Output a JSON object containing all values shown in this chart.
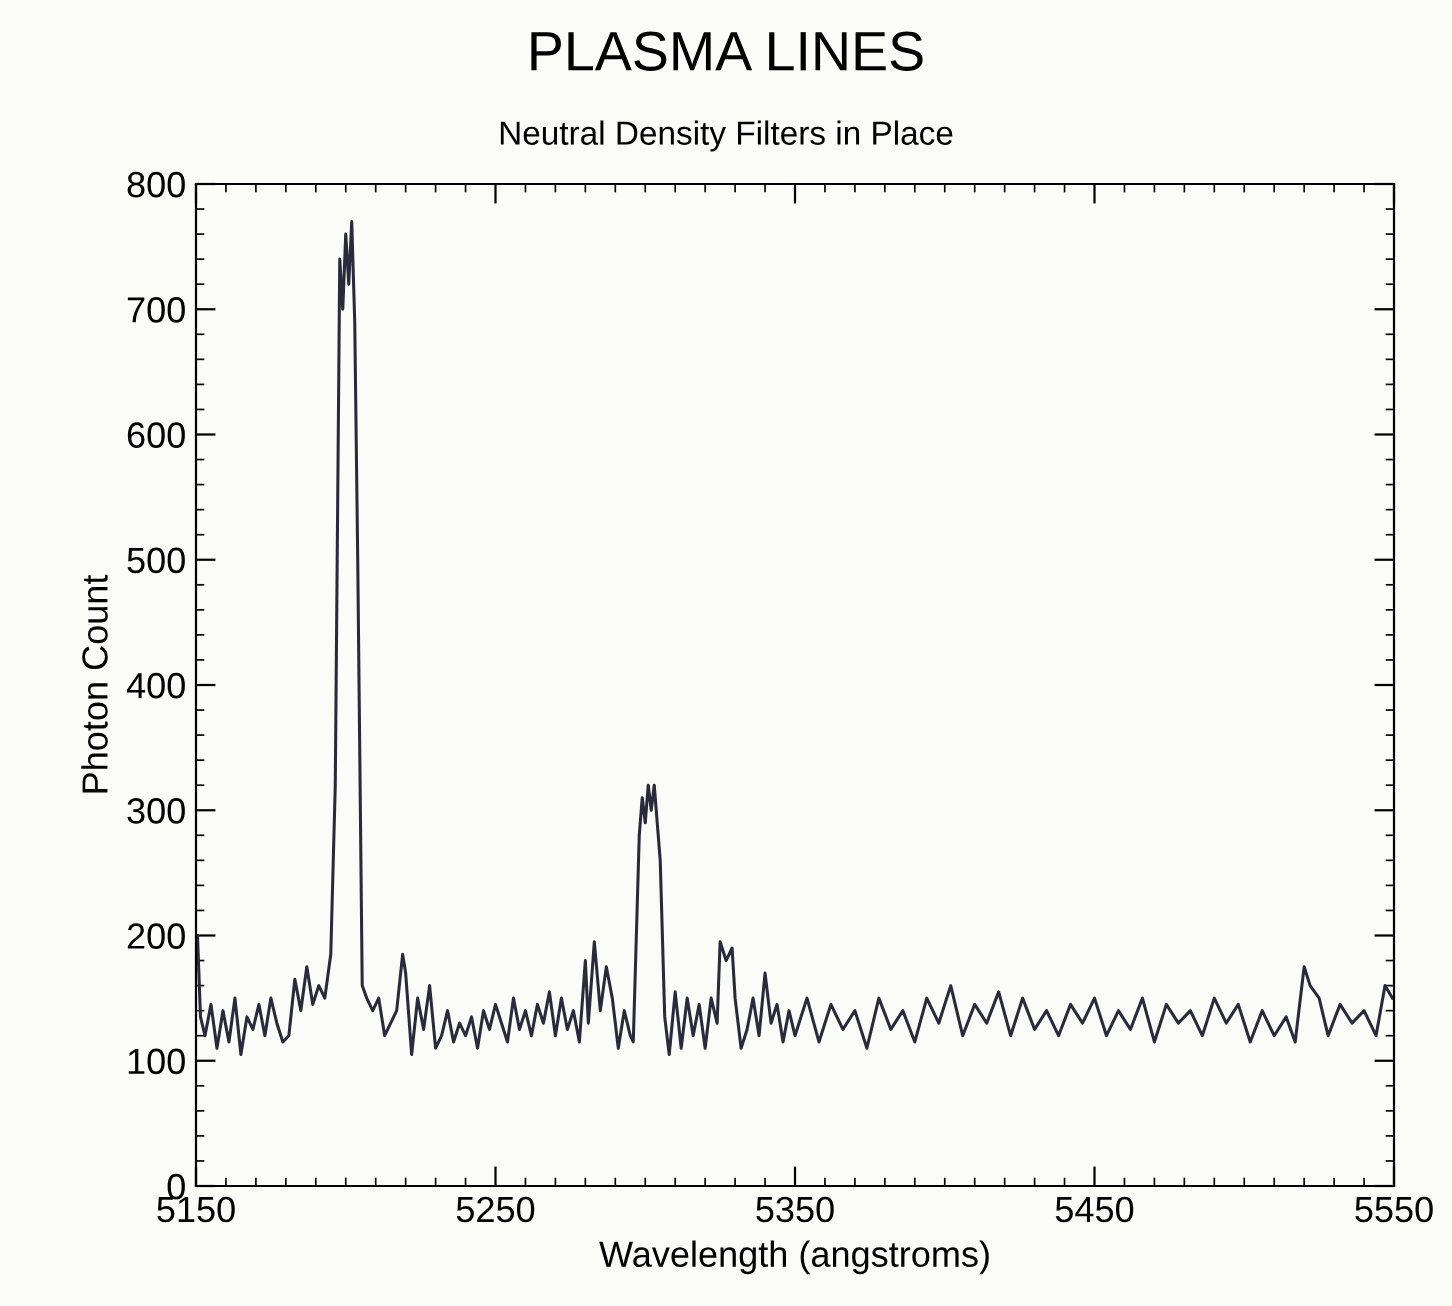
{
  "chart_data": {
    "type": "line",
    "title": "PLASMA LINES",
    "subtitle": "Neutral Density Filters in Place",
    "xlabel": "Wavelength (angstroms)",
    "ylabel": "Photon Count",
    "series": [
      {
        "color": "#2a2a3c",
        "x": [
          5150.5,
          5151.5,
          5153,
          5155,
          5157,
          5159,
          5161,
          5163,
          5165,
          5167,
          5169,
          5171,
          5173,
          5175,
          5177,
          5179,
          5181,
          5183,
          5185,
          5187,
          5189,
          5191,
          5193,
          5195,
          5196.5,
          5198,
          5199,
          5200,
          5201,
          5202,
          5203,
          5204,
          5205.5,
          5207,
          5209,
          5211,
          5213,
          5215,
          5217,
          5219,
          5220,
          5222,
          5224,
          5226,
          5228,
          5230,
          5232,
          5234,
          5236,
          5238,
          5240,
          5242,
          5244,
          5246,
          5248,
          5250,
          5252,
          5254,
          5256,
          5258,
          5260,
          5262,
          5264,
          5266,
          5268,
          5270,
          5272,
          5274,
          5276,
          5278,
          5280,
          5281,
          5283,
          5285,
          5287,
          5289,
          5291,
          5293,
          5295,
          5296,
          5298,
          5299,
          5300,
          5301,
          5302,
          5303,
          5305,
          5306.5,
          5308,
          5310,
          5312,
          5314,
          5316,
          5318,
          5320,
          5322,
          5324,
          5325,
          5327,
          5329,
          5330,
          5332,
          5334,
          5336,
          5338,
          5340,
          5342,
          5344,
          5346,
          5348,
          5350,
          5354,
          5358,
          5362,
          5366,
          5370,
          5374,
          5378,
          5382,
          5386,
          5390,
          5394,
          5398,
          5402,
          5406,
          5410,
          5414,
          5418,
          5422,
          5426,
          5430,
          5434,
          5438,
          5442,
          5446,
          5450,
          5454,
          5458,
          5462,
          5466,
          5470,
          5474,
          5478,
          5482,
          5486,
          5490,
          5494,
          5498,
          5502,
          5506,
          5510,
          5514,
          5517,
          5520,
          5522,
          5525,
          5528,
          5532,
          5536,
          5540,
          5544,
          5547,
          5549.5
        ],
        "values": [
          200,
          135,
          120,
          145,
          110,
          140,
          115,
          150,
          105,
          135,
          125,
          145,
          120,
          150,
          130,
          115,
          120,
          165,
          140,
          175,
          145,
          160,
          150,
          185,
          320,
          740,
          700,
          760,
          720,
          770,
          690,
          500,
          160,
          150,
          140,
          150,
          120,
          130,
          140,
          185,
          170,
          105,
          150,
          125,
          160,
          110,
          120,
          140,
          115,
          130,
          120,
          135,
          110,
          140,
          125,
          145,
          130,
          115,
          150,
          125,
          140,
          120,
          145,
          130,
          155,
          120,
          150,
          125,
          140,
          115,
          180,
          130,
          195,
          140,
          175,
          150,
          110,
          140,
          120,
          115,
          280,
          310,
          290,
          320,
          300,
          320,
          260,
          135,
          105,
          155,
          110,
          150,
          120,
          145,
          110,
          150,
          130,
          195,
          180,
          190,
          150,
          110,
          125,
          150,
          120,
          170,
          130,
          145,
          115,
          140,
          120,
          150,
          115,
          145,
          125,
          140,
          110,
          150,
          125,
          140,
          115,
          150,
          130,
          160,
          120,
          145,
          130,
          155,
          120,
          150,
          125,
          140,
          120,
          145,
          130,
          150,
          120,
          140,
          125,
          150,
          115,
          145,
          130,
          140,
          120,
          150,
          130,
          145,
          115,
          140,
          120,
          135,
          115,
          175,
          160,
          150,
          120,
          145,
          130,
          140,
          120,
          160,
          150
        ]
      }
    ],
    "xlim": [
      5150,
      5550
    ],
    "xticks": [
      5150,
      5250,
      5350,
      5450,
      5550
    ],
    "ylim": [
      0,
      800
    ],
    "yticks": [
      0,
      100,
      200,
      300,
      400,
      500,
      600,
      700,
      800
    ],
    "grid": false,
    "legend": false,
    "marker": "none",
    "line_style": "solid"
  }
}
